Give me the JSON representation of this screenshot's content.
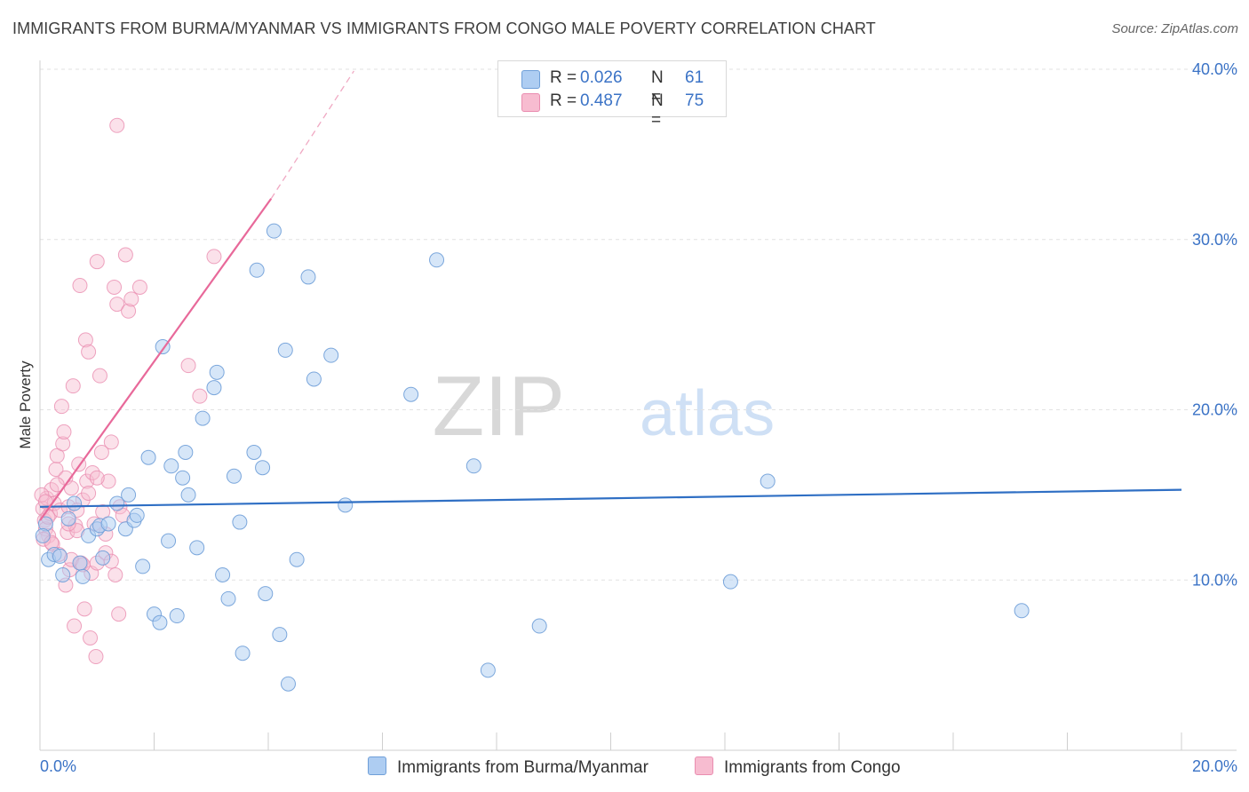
{
  "header": {
    "title": "IMMIGRANTS FROM BURMA/MYANMAR VS IMMIGRANTS FROM CONGO MALE POVERTY CORRELATION CHART",
    "source": "Source: ZipAtlas.com"
  },
  "legend": {
    "series": [
      {
        "r_label": "R =",
        "r_value": "0.026",
        "n_label": "N =",
        "n_value": "61"
      },
      {
        "r_label": "R =",
        "r_value": "0.487",
        "n_label": "N =",
        "n_value": "75"
      }
    ]
  },
  "bottom_legend": {
    "burma": "Immigrants from Burma/Myanmar",
    "congo": "Immigrants from Congo"
  },
  "watermark": {
    "zip": "ZIP",
    "atlas": "atlas"
  },
  "colors": {
    "burma_fill": "#aecdf2",
    "burma_stroke": "#6f9fd8",
    "burma_line": "#2f6fc4",
    "congo_fill": "#f7bcd0",
    "congo_stroke": "#ea8db0",
    "congo_line": "#e8699a",
    "axis_label": "#3b73c6"
  },
  "chart_data": {
    "type": "scatter",
    "title": "IMMIGRANTS FROM BURMA/MYANMAR VS IMMIGRANTS FROM CONGO MALE POVERTY CORRELATION CHART",
    "xlabel": "",
    "ylabel": "Male Poverty",
    "xlim": [
      0,
      20
    ],
    "ylim": [
      0,
      40
    ],
    "x_tick_labels": [
      "0.0%",
      "20.0%"
    ],
    "y_ticks": [
      10,
      20,
      30,
      40
    ],
    "y_tick_labels": [
      "10.0%",
      "20.0%",
      "30.0%",
      "40.0%"
    ],
    "grid": true,
    "legend_position": "top-center",
    "series": [
      {
        "name": "Immigrants from Burma/Myanmar",
        "R": 0.026,
        "N": 61,
        "trend": {
          "x0": 0,
          "y0": 14.3,
          "x1": 20,
          "y1": 15.3
        },
        "points": [
          [
            0.15,
            11.2
          ],
          [
            0.25,
            11.5
          ],
          [
            0.35,
            11.4
          ],
          [
            0.4,
            10.3
          ],
          [
            0.5,
            13.6
          ],
          [
            0.6,
            14.5
          ],
          [
            0.7,
            11.0
          ],
          [
            0.75,
            10.2
          ],
          [
            0.85,
            12.6
          ],
          [
            1.0,
            13.0
          ],
          [
            1.05,
            13.2
          ],
          [
            1.1,
            11.3
          ],
          [
            1.2,
            13.3
          ],
          [
            1.35,
            14.5
          ],
          [
            1.5,
            13.0
          ],
          [
            1.55,
            15.0
          ],
          [
            1.65,
            13.5
          ],
          [
            1.7,
            13.8
          ],
          [
            1.8,
            10.8
          ],
          [
            1.9,
            17.2
          ],
          [
            2.0,
            8.0
          ],
          [
            2.1,
            7.5
          ],
          [
            2.15,
            23.7
          ],
          [
            2.25,
            12.3
          ],
          [
            2.3,
            16.7
          ],
          [
            2.4,
            7.9
          ],
          [
            2.5,
            16.0
          ],
          [
            2.55,
            17.5
          ],
          [
            2.6,
            15.0
          ],
          [
            2.75,
            11.9
          ],
          [
            2.85,
            19.5
          ],
          [
            3.05,
            21.3
          ],
          [
            3.1,
            22.2
          ],
          [
            3.2,
            10.3
          ],
          [
            3.3,
            8.9
          ],
          [
            3.4,
            16.1
          ],
          [
            3.5,
            13.4
          ],
          [
            3.55,
            5.7
          ],
          [
            3.75,
            17.5
          ],
          [
            3.8,
            28.2
          ],
          [
            3.9,
            16.6
          ],
          [
            3.95,
            9.2
          ],
          [
            4.1,
            30.5
          ],
          [
            4.2,
            6.8
          ],
          [
            4.3,
            23.5
          ],
          [
            4.35,
            3.9
          ],
          [
            4.5,
            11.2
          ],
          [
            4.7,
            27.8
          ],
          [
            4.8,
            21.8
          ],
          [
            5.1,
            23.2
          ],
          [
            5.35,
            14.4
          ],
          [
            6.5,
            20.9
          ],
          [
            6.95,
            28.8
          ],
          [
            7.6,
            16.7
          ],
          [
            7.85,
            4.7
          ],
          [
            8.75,
            7.3
          ],
          [
            12.1,
            9.9
          ],
          [
            12.75,
            15.8
          ],
          [
            17.2,
            8.2
          ],
          [
            0.1,
            13.3
          ],
          [
            0.05,
            12.6
          ]
        ]
      },
      {
        "name": "Immigrants from Congo",
        "R": 0.487,
        "N": 75,
        "trend": {
          "x0": 0,
          "y0": 13.5,
          "x1": 4.05,
          "y1": 32.4
        },
        "trend_dashed": {
          "x0": 4.05,
          "y0": 32.4,
          "x1": 5.5,
          "y1": 39.9
        },
        "points": [
          [
            0.05,
            14.2
          ],
          [
            0.08,
            13.5
          ],
          [
            0.1,
            13.0
          ],
          [
            0.12,
            14.8
          ],
          [
            0.15,
            12.6
          ],
          [
            0.18,
            13.9
          ],
          [
            0.2,
            15.3
          ],
          [
            0.22,
            12.1
          ],
          [
            0.25,
            14.5
          ],
          [
            0.28,
            16.5
          ],
          [
            0.3,
            17.3
          ],
          [
            0.33,
            11.5
          ],
          [
            0.35,
            14.1
          ],
          [
            0.38,
            20.2
          ],
          [
            0.4,
            18.0
          ],
          [
            0.42,
            18.7
          ],
          [
            0.45,
            16.0
          ],
          [
            0.48,
            12.8
          ],
          [
            0.5,
            14.3
          ],
          [
            0.52,
            10.6
          ],
          [
            0.55,
            15.4
          ],
          [
            0.58,
            21.4
          ],
          [
            0.6,
            7.3
          ],
          [
            0.62,
            13.2
          ],
          [
            0.65,
            12.9
          ],
          [
            0.68,
            16.8
          ],
          [
            0.7,
            27.3
          ],
          [
            0.72,
            11.0
          ],
          [
            0.75,
            14.7
          ],
          [
            0.78,
            8.3
          ],
          [
            0.8,
            24.1
          ],
          [
            0.82,
            15.8
          ],
          [
            0.85,
            23.4
          ],
          [
            0.88,
            6.6
          ],
          [
            0.9,
            10.4
          ],
          [
            0.92,
            16.3
          ],
          [
            0.95,
            13.3
          ],
          [
            0.98,
            5.5
          ],
          [
            1.0,
            11.0
          ],
          [
            1.0,
            28.7
          ],
          [
            1.05,
            22.0
          ],
          [
            1.08,
            17.5
          ],
          [
            1.1,
            14.0
          ],
          [
            1.15,
            11.6
          ],
          [
            1.2,
            15.8
          ],
          [
            1.25,
            18.1
          ],
          [
            1.3,
            27.2
          ],
          [
            1.32,
            10.3
          ],
          [
            1.35,
            26.2
          ],
          [
            1.38,
            8.0
          ],
          [
            1.4,
            14.3
          ],
          [
            1.45,
            13.8
          ],
          [
            1.5,
            29.1
          ],
          [
            1.55,
            25.8
          ],
          [
            1.6,
            26.5
          ],
          [
            1.75,
            27.2
          ],
          [
            1.35,
            36.7
          ],
          [
            2.6,
            22.6
          ],
          [
            2.8,
            20.8
          ],
          [
            3.05,
            29.0
          ],
          [
            0.03,
            15.0
          ],
          [
            0.06,
            12.4
          ],
          [
            0.1,
            14.6
          ],
          [
            0.14,
            13.7
          ],
          [
            0.2,
            12.2
          ],
          [
            0.3,
            15.6
          ],
          [
            0.45,
            9.7
          ],
          [
            0.5,
            13.3
          ],
          [
            0.55,
            11.2
          ],
          [
            0.65,
            14.1
          ],
          [
            0.75,
            10.9
          ],
          [
            0.85,
            15.1
          ],
          [
            1.0,
            16.0
          ],
          [
            1.15,
            12.7
          ],
          [
            1.25,
            11.1
          ]
        ]
      }
    ]
  }
}
